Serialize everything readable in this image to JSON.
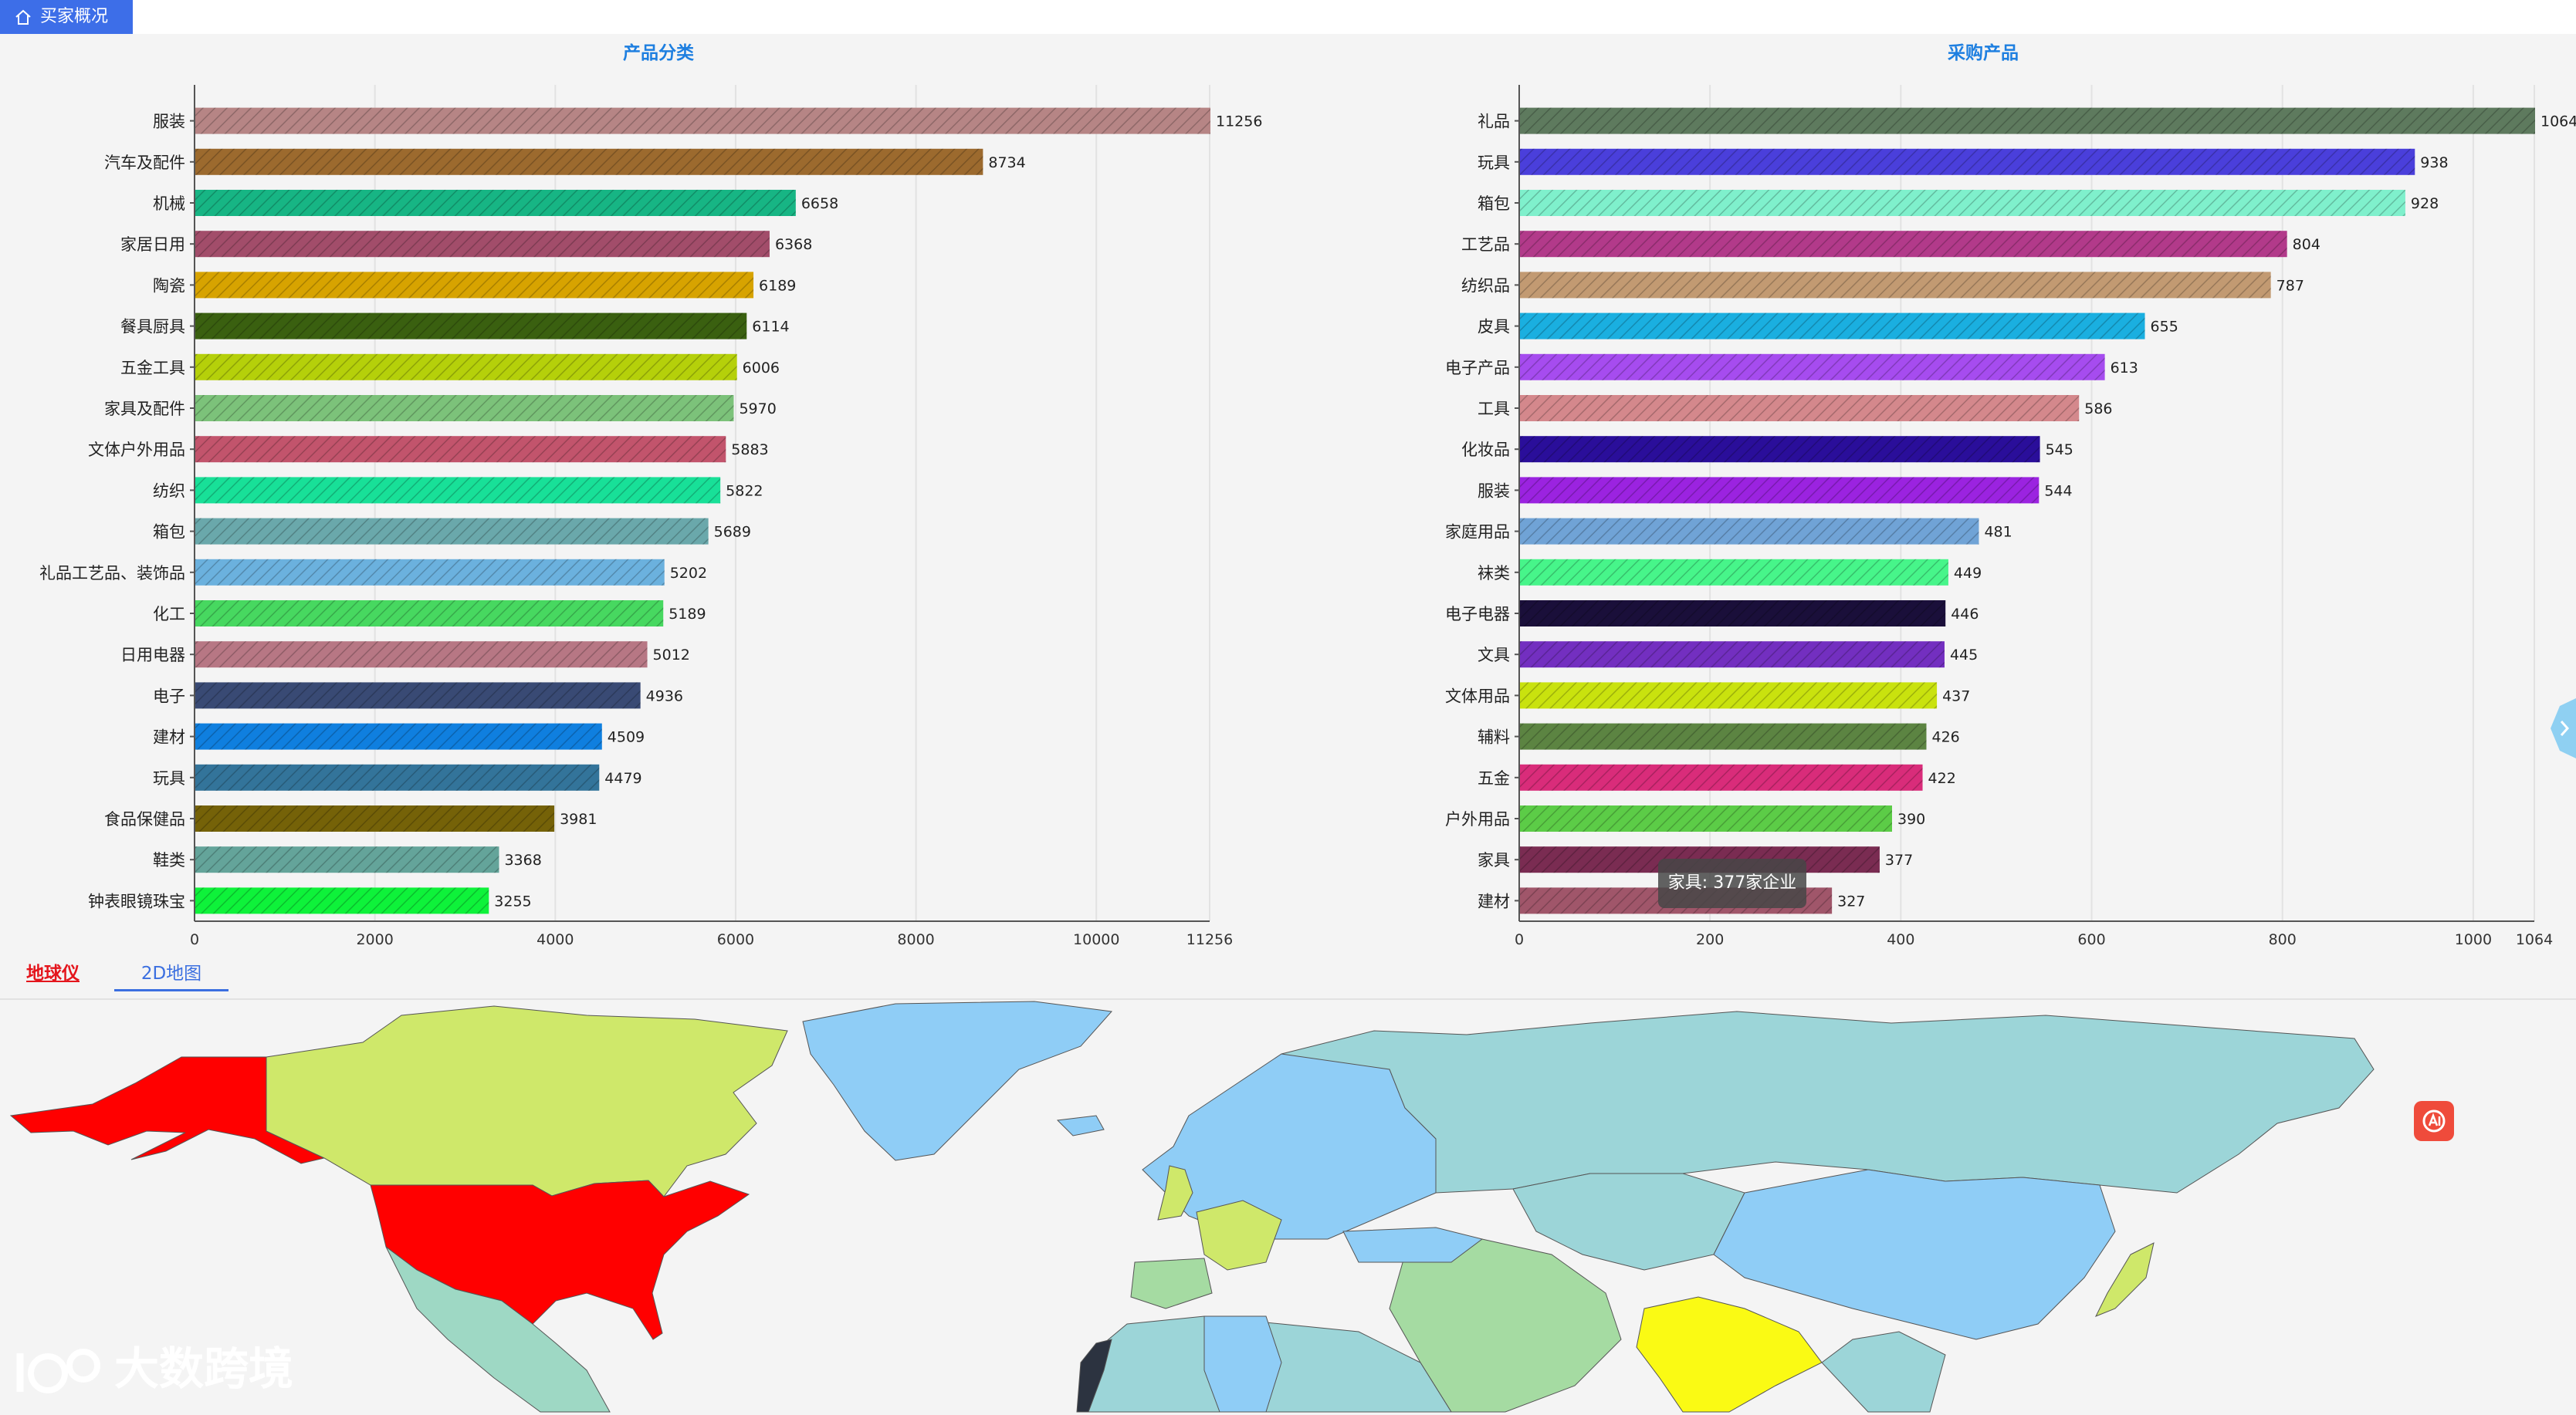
{
  "nav": {
    "home_label": "买家概况"
  },
  "charts": {
    "left_title": "产品分类",
    "right_title": "采购产品"
  },
  "chart_data": [
    {
      "type": "bar",
      "orientation": "horizontal",
      "title": "产品分类",
      "categories": [
        "服装",
        "汽车及配件",
        "机械",
        "家居日用",
        "陶瓷",
        "餐具厨具",
        "五金工具",
        "家具及配件",
        "文体户外用品",
        "纺织",
        "箱包",
        "礼品工艺品、装饰品",
        "化工",
        "日用电器",
        "电子",
        "建材",
        "玩具",
        "食品保健品",
        "鞋类",
        "钟表眼镜珠宝"
      ],
      "values": [
        11256,
        8734,
        6658,
        6368,
        6189,
        6114,
        6006,
        5970,
        5883,
        5822,
        5689,
        5202,
        5189,
        5012,
        4936,
        4509,
        4479,
        3981,
        3368,
        3255
      ],
      "colors": [
        "#b68585",
        "#9c6a2e",
        "#17b584",
        "#a24d6a",
        "#d7a300",
        "#3a6010",
        "#b5d00a",
        "#7cc27a",
        "#c2546c",
        "#18e098",
        "#6aa8ab",
        "#6bb1de",
        "#47d860",
        "#b77784",
        "#394a74",
        "#0f7fdf",
        "#33749a",
        "#756208",
        "#64a49a",
        "#0ef23a"
      ],
      "xticks": [
        0,
        2000,
        4000,
        6000,
        8000,
        10000,
        11256
      ],
      "xlim": [
        0,
        11256
      ],
      "grid": true
    },
    {
      "type": "bar",
      "orientation": "horizontal",
      "title": "采购产品",
      "categories": [
        "礼品",
        "玩具",
        "箱包",
        "工艺品",
        "纺织品",
        "皮具",
        "电子产品",
        "工具",
        "化妆品",
        "服装",
        "家庭用品",
        "袜类",
        "电子电器",
        "文具",
        "文体用品",
        "辅料",
        "五金",
        "户外用品",
        "家具",
        "建材"
      ],
      "values": [
        1064,
        938,
        928,
        804,
        787,
        655,
        613,
        586,
        545,
        544,
        481,
        449,
        446,
        445,
        437,
        426,
        422,
        390,
        377,
        327
      ],
      "colors": [
        "#5e7a5e",
        "#4a3fdb",
        "#7ff0cc",
        "#b23a8a",
        "#c29a72",
        "#1aafe0",
        "#a64cef",
        "#d4888c",
        "#2a0e9a",
        "#9b23e0",
        "#70a3d6",
        "#47f58a",
        "#1a0f3a",
        "#732fc0",
        "#c9e20e",
        "#5c8442",
        "#d92c7a",
        "#5ccc47",
        "#7a2c52",
        "#a0566a"
      ],
      "xticks": [
        0,
        200,
        400,
        600,
        800,
        1000,
        1064
      ],
      "xlim": [
        0,
        1064
      ],
      "grid": true
    }
  ],
  "tooltip": {
    "text": "家具: 377家企业"
  },
  "map_tabs": {
    "globe": "地球仪",
    "flat": "2D地图"
  },
  "watermark": {
    "text": "大数跨境"
  },
  "icons": {
    "home": "home-icon",
    "ai": "ai-assistant-icon",
    "side": "chevron-right-icon"
  }
}
